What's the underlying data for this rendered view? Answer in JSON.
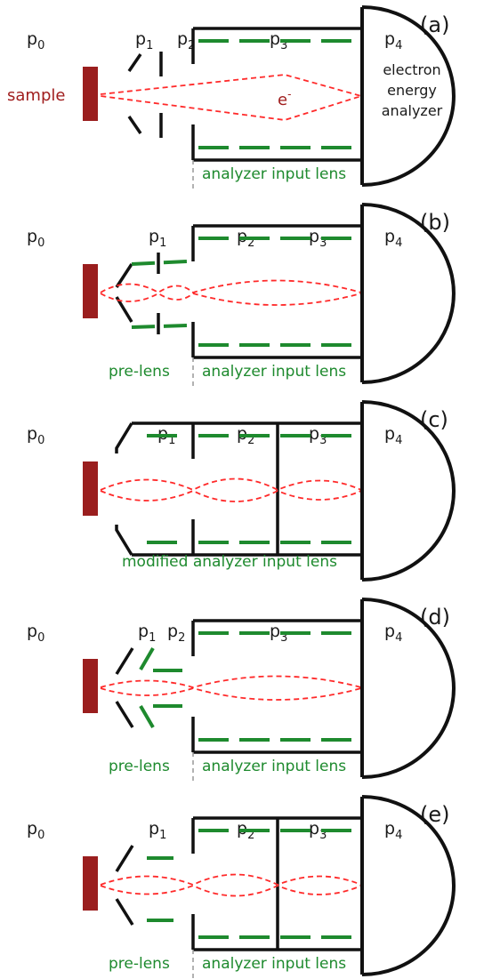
{
  "colors": {
    "outline": "#111111",
    "lens": "#1e8a2e",
    "beam": "#ff2a2a",
    "sample": "#9a1e1e",
    "divider": "#999999"
  },
  "panels": [
    {
      "id": "a",
      "panel_label": "(a)",
      "potentials": [
        "p0",
        "p1",
        "p2",
        "p3",
        "p4"
      ],
      "sample_label": "sample",
      "electron_label": "e",
      "electron_superscript": "-",
      "analyzer_label_lines": [
        "electron",
        "energy",
        "analyzer"
      ],
      "left_caption": "",
      "right_caption": "analyzer input lens",
      "variant": "a"
    },
    {
      "id": "b",
      "panel_label": "(b)",
      "potentials": [
        "p0",
        "p1",
        "p2",
        "p3",
        "p4"
      ],
      "left_caption": "pre-lens",
      "right_caption": "analyzer input lens",
      "variant": "b"
    },
    {
      "id": "c",
      "panel_label": "(c)",
      "potentials": [
        "p0",
        "p1",
        "p2",
        "p3",
        "p4"
      ],
      "left_caption": "",
      "right_caption": "modified analyzer input lens",
      "variant": "c"
    },
    {
      "id": "d",
      "panel_label": "(d)",
      "potentials": [
        "p0",
        "p1",
        "p2",
        "p3",
        "p4"
      ],
      "left_caption": "pre-lens",
      "right_caption": "analyzer input lens",
      "variant": "d"
    },
    {
      "id": "e",
      "panel_label": "(e)",
      "potentials": [
        "p0",
        "p1",
        "p2",
        "p3",
        "p4"
      ],
      "left_caption": "pre-lens",
      "right_caption": "analyzer input lens",
      "variant": "e"
    }
  ]
}
